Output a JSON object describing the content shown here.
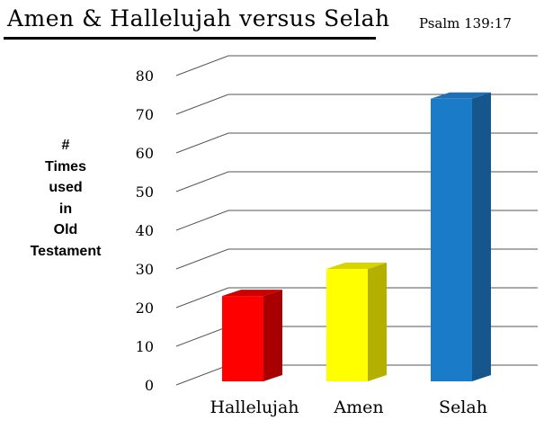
{
  "title": "Amen  & Hallelujah versus Selah",
  "reference": "Psalm 139:17",
  "chart_data": {
    "type": "bar",
    "title": "Amen  & Hallelujah versus Selah",
    "ylabel_lines": [
      "#",
      "Times",
      "used",
      "in",
      "Old",
      "Testament"
    ],
    "xlabel": "",
    "categories": [
      "Hallelujah",
      "Amen",
      "Selah"
    ],
    "values": [
      23,
      30,
      74
    ],
    "ylim": [
      0,
      80
    ],
    "yticks": [
      0,
      10,
      20,
      30,
      40,
      50,
      60,
      70,
      80
    ],
    "grid": true,
    "legend": "none",
    "style": "3d",
    "colors": [
      {
        "front": "#ff0000",
        "side": "#a80000",
        "top": "#cc0000"
      },
      {
        "front": "#ffff00",
        "side": "#b4b000",
        "top": "#d8d400"
      },
      {
        "front": "#1a7cc8",
        "side": "#17568c",
        "top": "#1f6fb4"
      }
    ],
    "grid_color": "#555555"
  }
}
